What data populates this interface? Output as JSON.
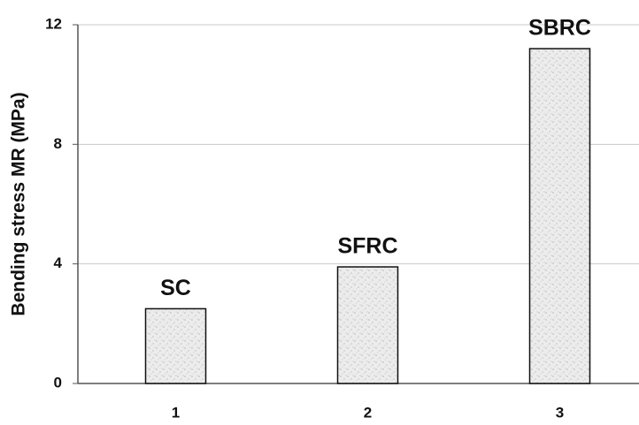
{
  "chart_data": {
    "type": "bar",
    "y_label": "Bending stress MR (MPa)",
    "categories": [
      "1",
      "2",
      "3"
    ],
    "values": [
      2.5,
      3.9,
      11.2
    ],
    "bar_labels": [
      "SC",
      "SFRC",
      "SBRC"
    ],
    "color": "#e8e8e8",
    "ylim": [
      0,
      12
    ],
    "yticks": [
      0,
      4,
      8,
      12
    ],
    "grid": true
  }
}
